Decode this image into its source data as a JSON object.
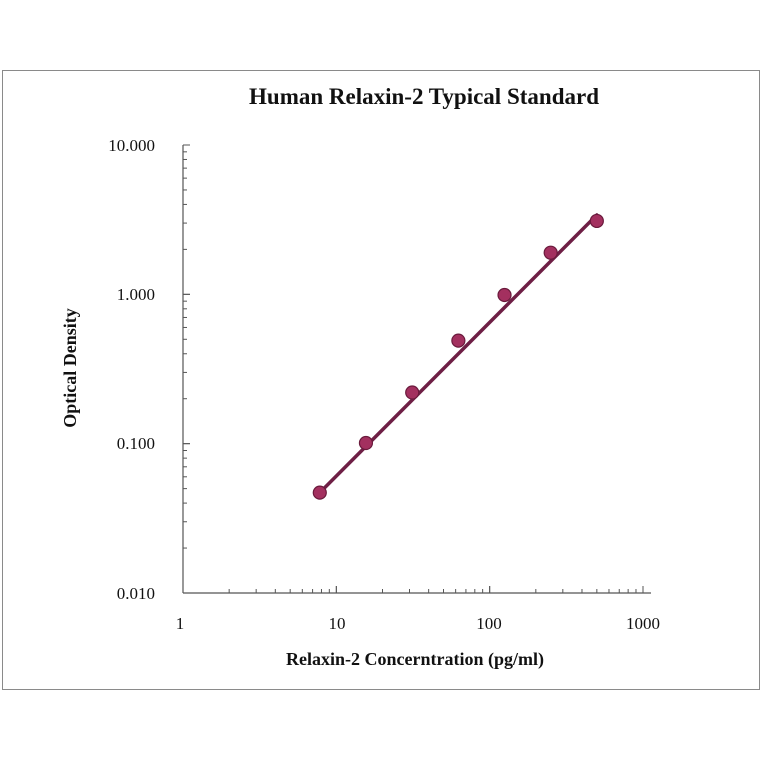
{
  "chart_data": {
    "type": "scatter",
    "title": "Human Relaxin-2 Typical Standard",
    "xlabel": "Relaxin-2 Concerntration (pg/ml)",
    "ylabel": "Optical Density",
    "x_scale": "log",
    "y_scale": "log",
    "xlim": [
      1,
      1000
    ],
    "ylim": [
      0.01,
      10
    ],
    "x_ticks": [
      "1",
      "10",
      "100",
      "1000"
    ],
    "y_ticks": [
      "0.010",
      "0.100",
      "1.000",
      "10.000"
    ],
    "grid": false,
    "legend": "none",
    "points": {
      "x": [
        7.8,
        15.6,
        31.25,
        62.5,
        125,
        250,
        500
      ],
      "y": [
        0.047,
        0.101,
        0.22,
        0.49,
        0.99,
        1.9,
        3.1
      ]
    },
    "fit_line": {
      "x": [
        7.8,
        500
      ],
      "y": [
        0.047,
        3.4
      ]
    },
    "colors": {
      "marker": "#a3305f",
      "marker_edge": "#6a1a3c",
      "line": "#6e1f45"
    }
  }
}
